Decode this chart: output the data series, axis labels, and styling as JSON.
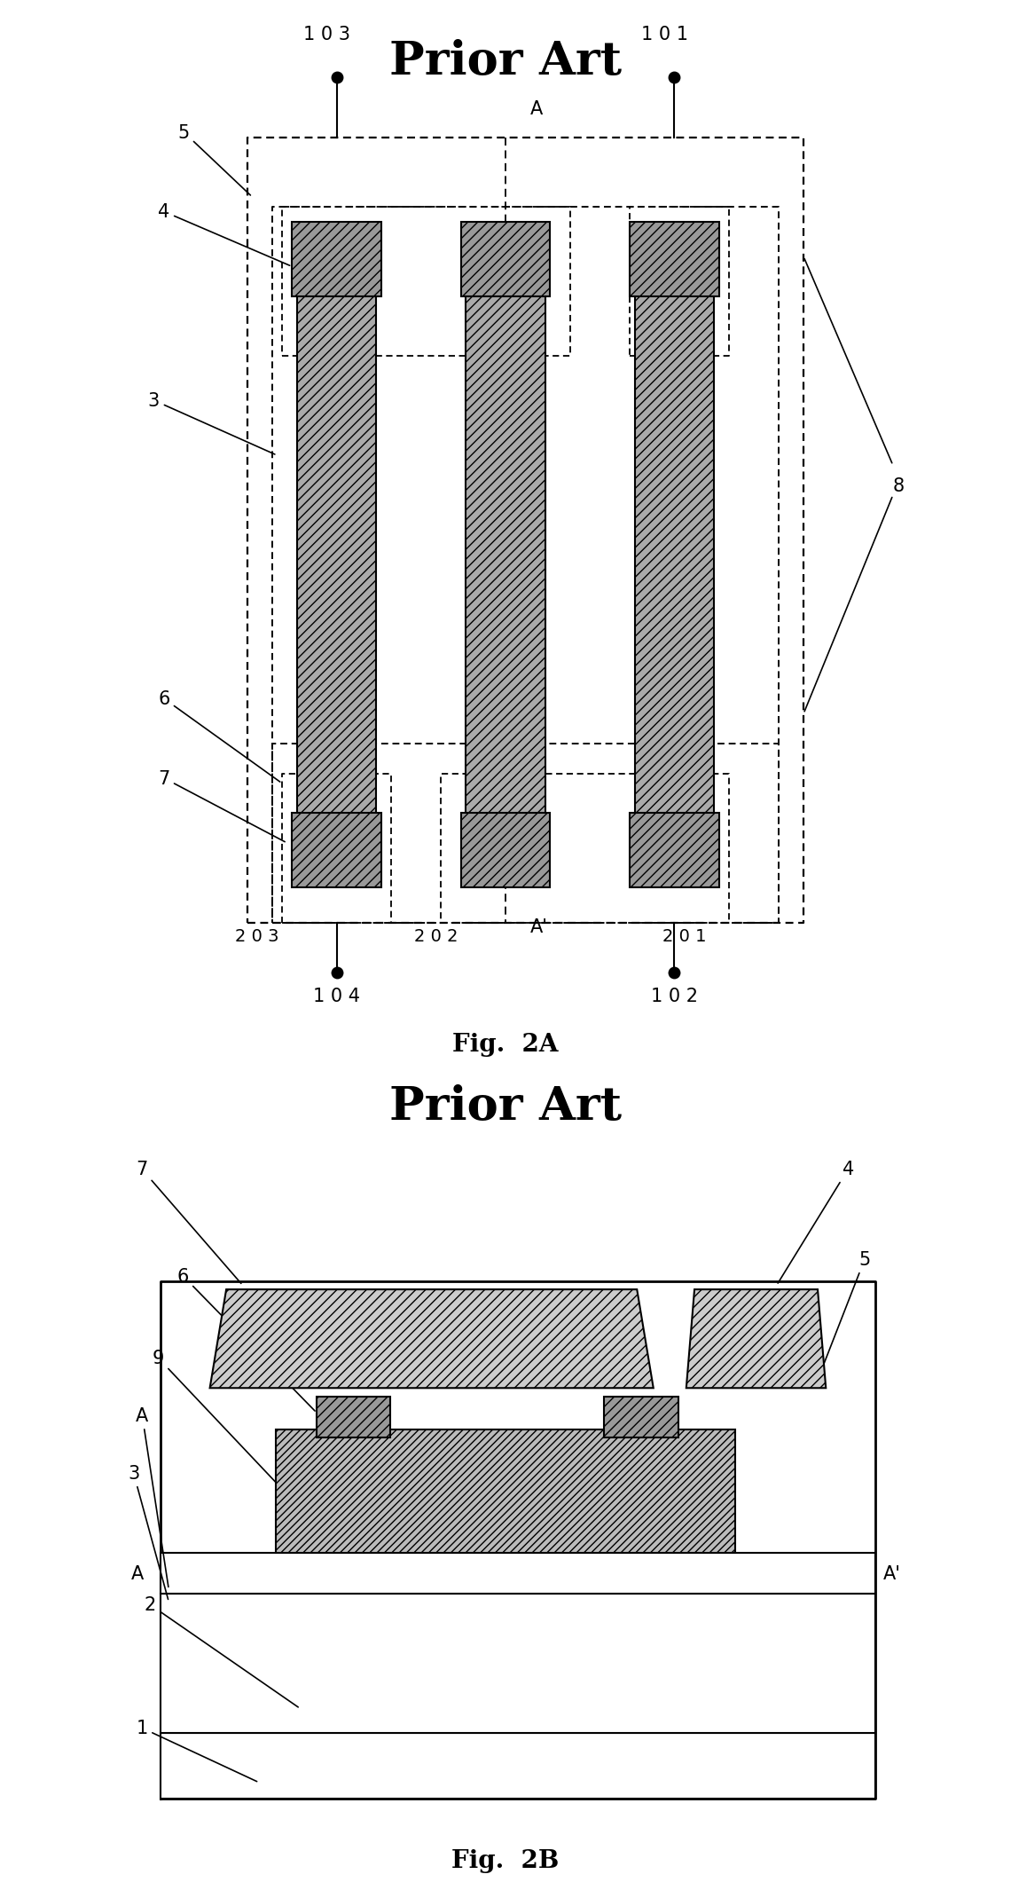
{
  "fig_width": 15.67,
  "fig_height": 21.54,
  "bg_color": "#ffffff",
  "title_fontsize": 38,
  "label_fontsize": 15,
  "fig_label_fontsize": 20
}
